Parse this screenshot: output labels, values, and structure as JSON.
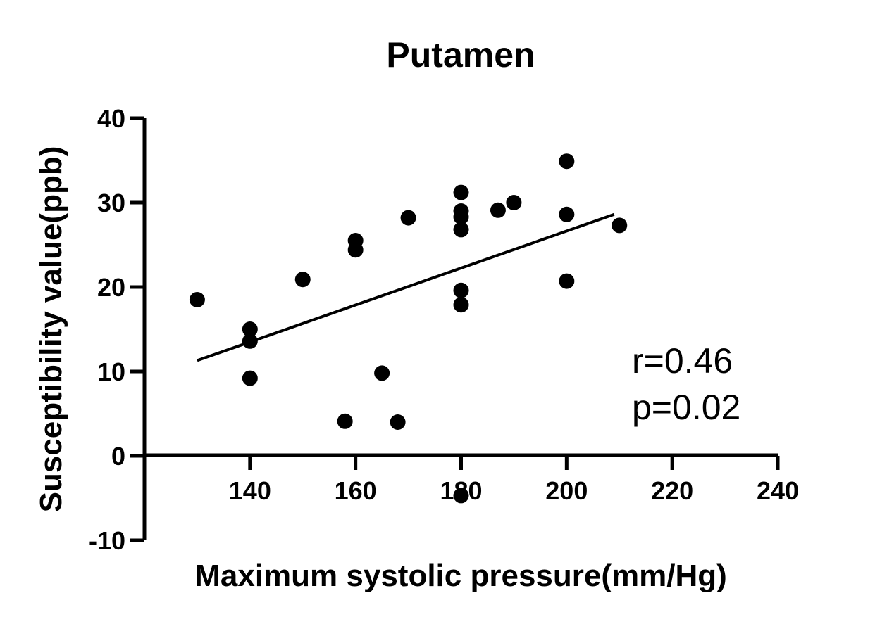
{
  "chart_data": {
    "type": "scatter",
    "title": "Putamen",
    "xlabel": "Maximum systolic pressure(mm/Hg)",
    "ylabel": "Susceptibility value(ppb)",
    "xlim": [
      120,
      240
    ],
    "ylim": [
      -10,
      40
    ],
    "x_ticks": [
      140,
      160,
      180,
      200,
      220,
      240
    ],
    "y_ticks": [
      -10,
      0,
      10,
      20,
      30,
      40
    ],
    "series": [
      {
        "name": "Putamen",
        "points": [
          {
            "x": 130,
            "y": 18.5
          },
          {
            "x": 140,
            "y": 15.0
          },
          {
            "x": 140,
            "y": 13.6
          },
          {
            "x": 140,
            "y": 9.2
          },
          {
            "x": 150,
            "y": 20.9
          },
          {
            "x": 158,
            "y": 4.1
          },
          {
            "x": 160,
            "y": 25.5
          },
          {
            "x": 160,
            "y": 24.4
          },
          {
            "x": 165,
            "y": 9.8
          },
          {
            "x": 168,
            "y": 4.0
          },
          {
            "x": 170,
            "y": 28.2
          },
          {
            "x": 180,
            "y": 31.2
          },
          {
            "x": 180,
            "y": 29.0
          },
          {
            "x": 180,
            "y": 28.3
          },
          {
            "x": 180,
            "y": 26.8
          },
          {
            "x": 180,
            "y": 19.6
          },
          {
            "x": 180,
            "y": 17.9
          },
          {
            "x": 180,
            "y": -4.7
          },
          {
            "x": 187,
            "y": 29.1
          },
          {
            "x": 190,
            "y": 30.0
          },
          {
            "x": 200,
            "y": 34.9
          },
          {
            "x": 200,
            "y": 28.6
          },
          {
            "x": 200,
            "y": 20.7
          },
          {
            "x": 210,
            "y": 27.3
          }
        ]
      }
    ],
    "regression_line": {
      "x1": 130,
      "y1": 11.3,
      "x2": 209,
      "y2": 28.6
    },
    "annotations": [
      "r=0.46",
      "p=0.02"
    ],
    "colors": {
      "marks": "#000000",
      "background": "#ffffff"
    }
  }
}
